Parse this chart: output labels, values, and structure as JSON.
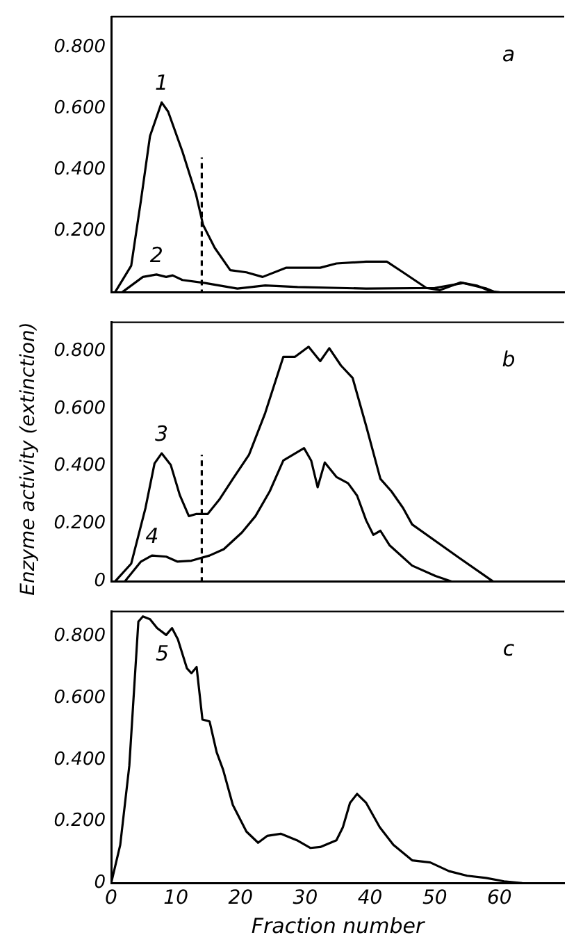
{
  "chart_data": [
    {
      "type": "line",
      "xlim": [
        0,
        70
      ],
      "xticks": [
        0,
        10,
        20,
        30,
        40,
        50,
        60
      ],
      "ylim": [
        0,
        0.9
      ],
      "yticks": [
        {
          "value": 0.2,
          "label": "0.200"
        },
        {
          "value": 0.4,
          "label": "0.400"
        },
        {
          "value": 0.6,
          "label": "0.600"
        },
        {
          "value": 0.8,
          "label": "0.800"
        }
      ],
      "tick_labels": "y",
      "annotations": [
        "a"
      ],
      "series": [
        {
          "name": "1",
          "color": "#000000",
          "x": [
            0.6,
            3.1,
            4.6,
            6.0,
            7.8,
            8.8,
            11,
            13.1,
            14.2,
            16,
            18.4,
            20.9,
            23.4,
            27,
            32.3,
            34.8,
            39.4,
            42.6,
            45.1,
            48.7,
            50.8,
            54,
            56.5,
            58.6,
            60
          ],
          "values": [
            0,
            0.087,
            0.3,
            0.51,
            0.62,
            0.59,
            0.46,
            0.32,
            0.22,
            0.145,
            0.072,
            0.065,
            0.05,
            0.08,
            0.08,
            0.094,
            0.1,
            0.1,
            0.065,
            0.014,
            0.007,
            0.032,
            0.022,
            0.003,
            0
          ]
        },
        {
          "name": "2",
          "color": "#000000",
          "x": [
            1.7,
            4.9,
            7,
            8.5,
            9.5,
            11,
            14.5,
            19.5,
            23.8,
            28.8,
            39.4,
            50,
            54.4,
            58,
            59.4
          ],
          "values": [
            0,
            0.05,
            0.058,
            0.05,
            0.055,
            0.04,
            0.03,
            0.012,
            0.022,
            0.017,
            0.012,
            0.014,
            0.03,
            0.012,
            0
          ]
        },
        {
          "type": "line",
          "color": "#000000",
          "line_style": "dashed",
          "x": [
            14,
            14
          ],
          "values": [
            0,
            0.44
          ]
        }
      ]
    },
    {
      "type": "line",
      "xlim": [
        0,
        70
      ],
      "xticks": [
        0,
        10,
        20,
        30,
        40,
        50,
        60
      ],
      "ylim": [
        0,
        0.9
      ],
      "yticks": [
        0,
        {
          "value": 0.2,
          "label": "0.200"
        },
        {
          "value": 0.4,
          "label": "0.400"
        },
        {
          "value": 0.6,
          "label": "0.600"
        },
        {
          "value": 0.8,
          "label": "0.800"
        }
      ],
      "tick_labels": "y",
      "ylabel": "Enzyme activity (extinction)",
      "annotations": [
        "b"
      ],
      "series": [
        {
          "name": "3",
          "color": "#000000",
          "x": [
            0.6,
            3.1,
            5.3,
            6.7,
            7.8,
            9.2,
            10.6,
            12,
            13.1,
            14.9,
            16.7,
            18.8,
            21.3,
            23.8,
            26.6,
            28.4,
            30.5,
            32.3,
            33.7,
            35.5,
            37.3,
            39.4,
            41.6,
            43.3,
            45.1,
            46.5,
            53.7,
            59
          ],
          "values": [
            0,
            0.062,
            0.255,
            0.41,
            0.445,
            0.405,
            0.3,
            0.227,
            0.234,
            0.234,
            0.284,
            0.356,
            0.44,
            0.585,
            0.78,
            0.78,
            0.815,
            0.765,
            0.81,
            0.75,
            0.707,
            0.54,
            0.356,
            0.313,
            0.255,
            0.198,
            0.083,
            0
          ]
        },
        {
          "name": "4",
          "color": "#000000",
          "x": [
            2.1,
            4.6,
            6.3,
            8.5,
            10.2,
            12.4,
            15.2,
            17.4,
            20.2,
            22.3,
            24.5,
            26.6,
            29.8,
            30.9,
            31.9,
            33,
            34.8,
            36.6,
            38,
            39.4,
            40.5,
            41.6,
            43,
            46.5,
            50.1,
            52.6
          ],
          "values": [
            0,
            0.069,
            0.09,
            0.086,
            0.069,
            0.072,
            0.09,
            0.112,
            0.17,
            0.227,
            0.313,
            0.42,
            0.463,
            0.42,
            0.327,
            0.413,
            0.363,
            0.341,
            0.298,
            0.212,
            0.162,
            0.176,
            0.126,
            0.055,
            0.019,
            0
          ]
        },
        {
          "type": "line",
          "color": "#000000",
          "line_style": "dashed",
          "x": [
            14,
            14
          ],
          "values": [
            0,
            0.44
          ]
        }
      ]
    },
    {
      "type": "line",
      "xlim": [
        0,
        70
      ],
      "xticks": [
        0,
        10,
        20,
        30,
        40,
        50,
        60
      ],
      "ylim": [
        0,
        0.88
      ],
      "yticks": [
        0,
        {
          "value": 0.2,
          "label": "0.200"
        },
        {
          "value": 0.4,
          "label": "0.400"
        },
        {
          "value": 0.6,
          "label": "0.600"
        },
        {
          "value": 0.8,
          "label": "0.800"
        }
      ],
      "xlabel": "Fraction number",
      "annotations": [
        "c"
      ],
      "series": [
        {
          "name": "5",
          "color": "#000000",
          "x": [
            0,
            1.4,
            2.8,
            4.2,
            4.9,
            6.0,
            7.1,
            8.5,
            9.4,
            10.3,
            11.7,
            12.4,
            13.2,
            14.1,
            15.2,
            16.3,
            17.3,
            18.8,
            20.9,
            22.7,
            24.1,
            26.2,
            28.7,
            30.8,
            32.3,
            34.8,
            35.8,
            36.9,
            38,
            39.4,
            41.5,
            43.6,
            46.5,
            49.3,
            52.2,
            55,
            57.9,
            60.7,
            63.5
          ],
          "values": [
            0,
            0.124,
            0.38,
            0.847,
            0.864,
            0.855,
            0.826,
            0.804,
            0.826,
            0.79,
            0.696,
            0.68,
            0.7,
            0.53,
            0.524,
            0.424,
            0.367,
            0.253,
            0.167,
            0.131,
            0.153,
            0.16,
            0.139,
            0.114,
            0.117,
            0.139,
            0.181,
            0.26,
            0.289,
            0.26,
            0.181,
            0.124,
            0.074,
            0.067,
            0.039,
            0.024,
            0.017,
            0.006,
            0
          ]
        }
      ]
    }
  ]
}
